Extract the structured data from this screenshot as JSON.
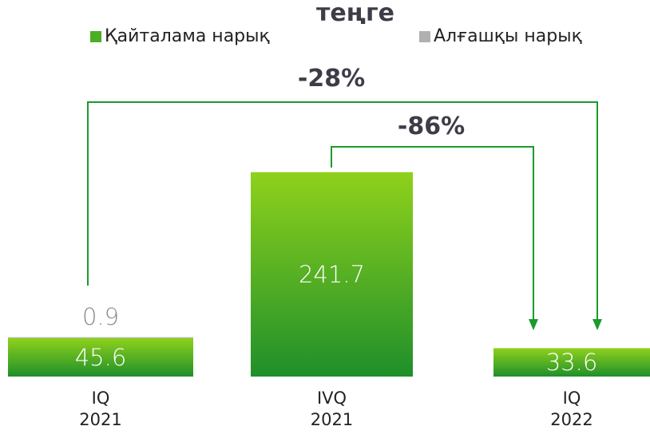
{
  "chart_data": {
    "type": "bar",
    "stacked": true,
    "title": "теңге",
    "categories": [
      "IQ 2021",
      "IVQ 2021",
      "IQ 2022"
    ],
    "series": [
      {
        "name": "Қайталама нарық",
        "color": "#4cae22",
        "values": [
          45.6,
          241.7,
          33.6
        ]
      },
      {
        "name": "Алғашқы нарық",
        "color": "#b0b0b0",
        "values": [
          0.9,
          null,
          null
        ]
      }
    ],
    "annotations": [
      "-28%",
      "-86%"
    ]
  }
}
